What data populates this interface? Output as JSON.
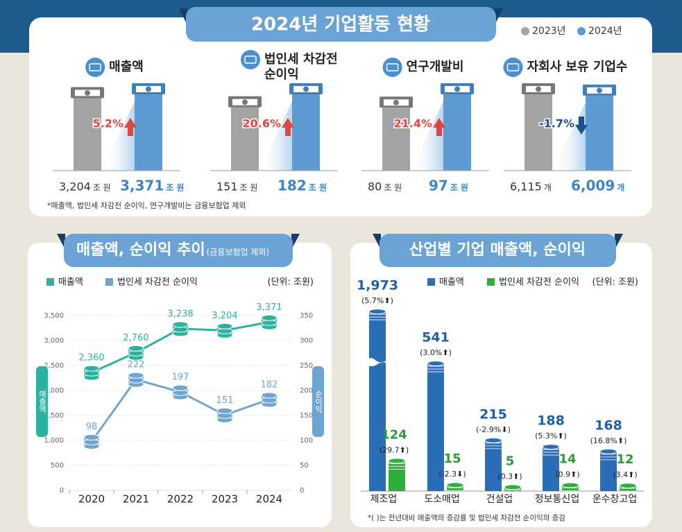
{
  "title": "2024년 기업활동 현황",
  "legend": [
    {
      "name": "2023년",
      "color": "#a3a3a3"
    },
    {
      "name": "2024년",
      "color": "#5e9bd3"
    }
  ],
  "summary": [
    {
      "label": [
        "매출액"
      ],
      "values": [
        3204,
        3371
      ],
      "value_labels": [
        "3,204",
        "3,371"
      ],
      "unit": "조 원",
      "change": 5.2,
      "change_label": "5.2%"
    },
    {
      "label": [
        "법인세 차감전",
        "순이익"
      ],
      "values": [
        151,
        182
      ],
      "value_labels": [
        "151",
        "182"
      ],
      "unit": "조 원",
      "change": 20.6,
      "change_label": "20.6%"
    },
    {
      "label": [
        "연구개발비"
      ],
      "values": [
        80,
        97
      ],
      "value_labels": [
        "80",
        "97"
      ],
      "unit": "조 원",
      "change": 21.4,
      "change_label": "21.4%"
    },
    {
      "label": [
        "자회사 보유 기업수"
      ],
      "values": [
        6115,
        6009
      ],
      "value_labels": [
        "6,115",
        "6,009"
      ],
      "unit": "개",
      "change": -1.7,
      "change_label": "-1.7%"
    }
  ],
  "note": "*매출액, 법인세 차감전 순이익, 연구개발비는 금융보험업 제외",
  "chart_data": [
    {
      "type": "line",
      "title": "매출액, 순이익 추이",
      "subtitle": "(금융보험업 제외)",
      "unit": "(단위: 조원)",
      "categories": [
        "2020",
        "2021",
        "2022",
        "2023",
        "2024"
      ],
      "ylabel": "매출액",
      "y2label": "순이익",
      "ylim": [
        0,
        3500
      ],
      "yticks": [
        0,
        500,
        {
          "value": 1000,
          "label": "1,000"
        },
        {
          "value": 1500,
          "label": "1,500"
        },
        {
          "value": 2000,
          "label": "2,000"
        },
        {
          "value": 2500,
          "label": "2,500"
        },
        {
          "value": 3000,
          "label": "3,000"
        },
        {
          "value": 3500,
          "label": "3,500"
        }
      ],
      "y2lim": [
        0,
        350
      ],
      "y2ticks": [
        0,
        50,
        100,
        150,
        200,
        250,
        300,
        350
      ],
      "grid": true,
      "series": [
        {
          "name": "매출액",
          "color": "#2bb3a0",
          "values": [
            2360,
            2760,
            3238,
            3204,
            3371
          ],
          "value_labels": [
            "2,360",
            "2,760",
            "3,238",
            "3,204",
            "3,371"
          ]
        },
        {
          "name": "법인세 차감전 순이익",
          "color": "#6ea3d2",
          "axis": "y2",
          "values": [
            98,
            222,
            197,
            151,
            182
          ]
        }
      ]
    },
    {
      "type": "bar",
      "title": "산업별 기업 매출액, 순이익",
      "unit": "(단위: 조원)",
      "categories": [
        "제조업",
        "도소매업",
        "건설업",
        "정보통신업",
        "운수창고업"
      ],
      "series": [
        {
          "name": "매출액",
          "color": "#2b6db6",
          "values": [
            1973,
            541,
            215,
            188,
            168
          ],
          "value_labels": [
            "1,973",
            "541",
            "215",
            "188",
            "168"
          ],
          "changes": [
            5.7,
            3.0,
            -2.9,
            5.3,
            16.8
          ],
          "change_labels": [
            "(5.7%⬆)",
            "(3.0%⬆)",
            "(-2.9%⬇)",
            "(5.3%⬆)",
            "(16.8%⬆)"
          ]
        },
        {
          "name": "법인세 차감전 순이익",
          "color": "#2fae3c",
          "values": [
            124,
            15,
            5,
            14,
            12
          ],
          "changes": [
            29.7,
            -2.3,
            0.3,
            0.9,
            3.4
          ],
          "change_labels": [
            "(29.7⬆)",
            "(-2.3⬇)",
            "(0.3⬆)",
            "(0.9⬆)",
            "(3.4⬆)"
          ]
        }
      ],
      "note": "*( )는 전년대비 매출액의 증감률 및 법인세 차감전 순이익의 증감"
    }
  ]
}
